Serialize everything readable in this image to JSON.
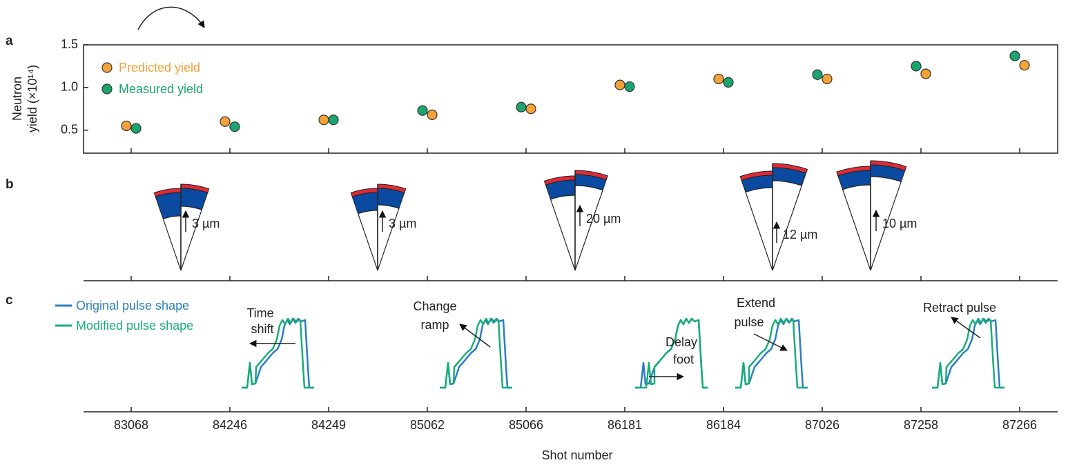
{
  "chart_data": {
    "type": "scatter",
    "panel": "a",
    "ylabel": [
      "Neutron",
      "yield (×10¹⁴)"
    ],
    "xlabel": "Shot number",
    "categories": [
      "83068",
      "84246",
      "84249",
      "85062",
      "85066",
      "86181",
      "86184",
      "87026",
      "87258",
      "87266"
    ],
    "series": [
      {
        "name": "Predicted yield",
        "color": "#f4a136",
        "values": [
          0.55,
          0.6,
          0.62,
          0.68,
          0.75,
          1.03,
          1.1,
          1.1,
          1.16,
          1.26
        ]
      },
      {
        "name": "Measured yield",
        "color": "#1ba56e",
        "values": [
          0.52,
          0.54,
          0.62,
          0.73,
          0.77,
          1.01,
          1.06,
          1.15,
          1.25,
          1.37
        ]
      }
    ],
    "ylim": [
      0.23,
      1.5
    ],
    "yticks": [
      0.5,
      {
        "value": 1,
        "label": "1.0"
      },
      1.5
    ],
    "legend": "upper left"
  },
  "panel_b": {
    "panel": "b",
    "labels": [
      "3 µm",
      "3 µm",
      "20 µm",
      "12 µm",
      "10 µm"
    ]
  },
  "panel_c": {
    "panel": "c",
    "legend": [
      {
        "name": "Original pulse shape",
        "color": "#2b7dc2"
      },
      {
        "name": "Modified pulse shape",
        "color": "#17ad78"
      }
    ],
    "annotations": [
      [
        "Time",
        "shift"
      ],
      [
        "Change",
        "ramp"
      ],
      [
        "Delay",
        "foot"
      ],
      [
        "Extend",
        "pulse"
      ],
      [
        "Retract pulse"
      ]
    ]
  }
}
